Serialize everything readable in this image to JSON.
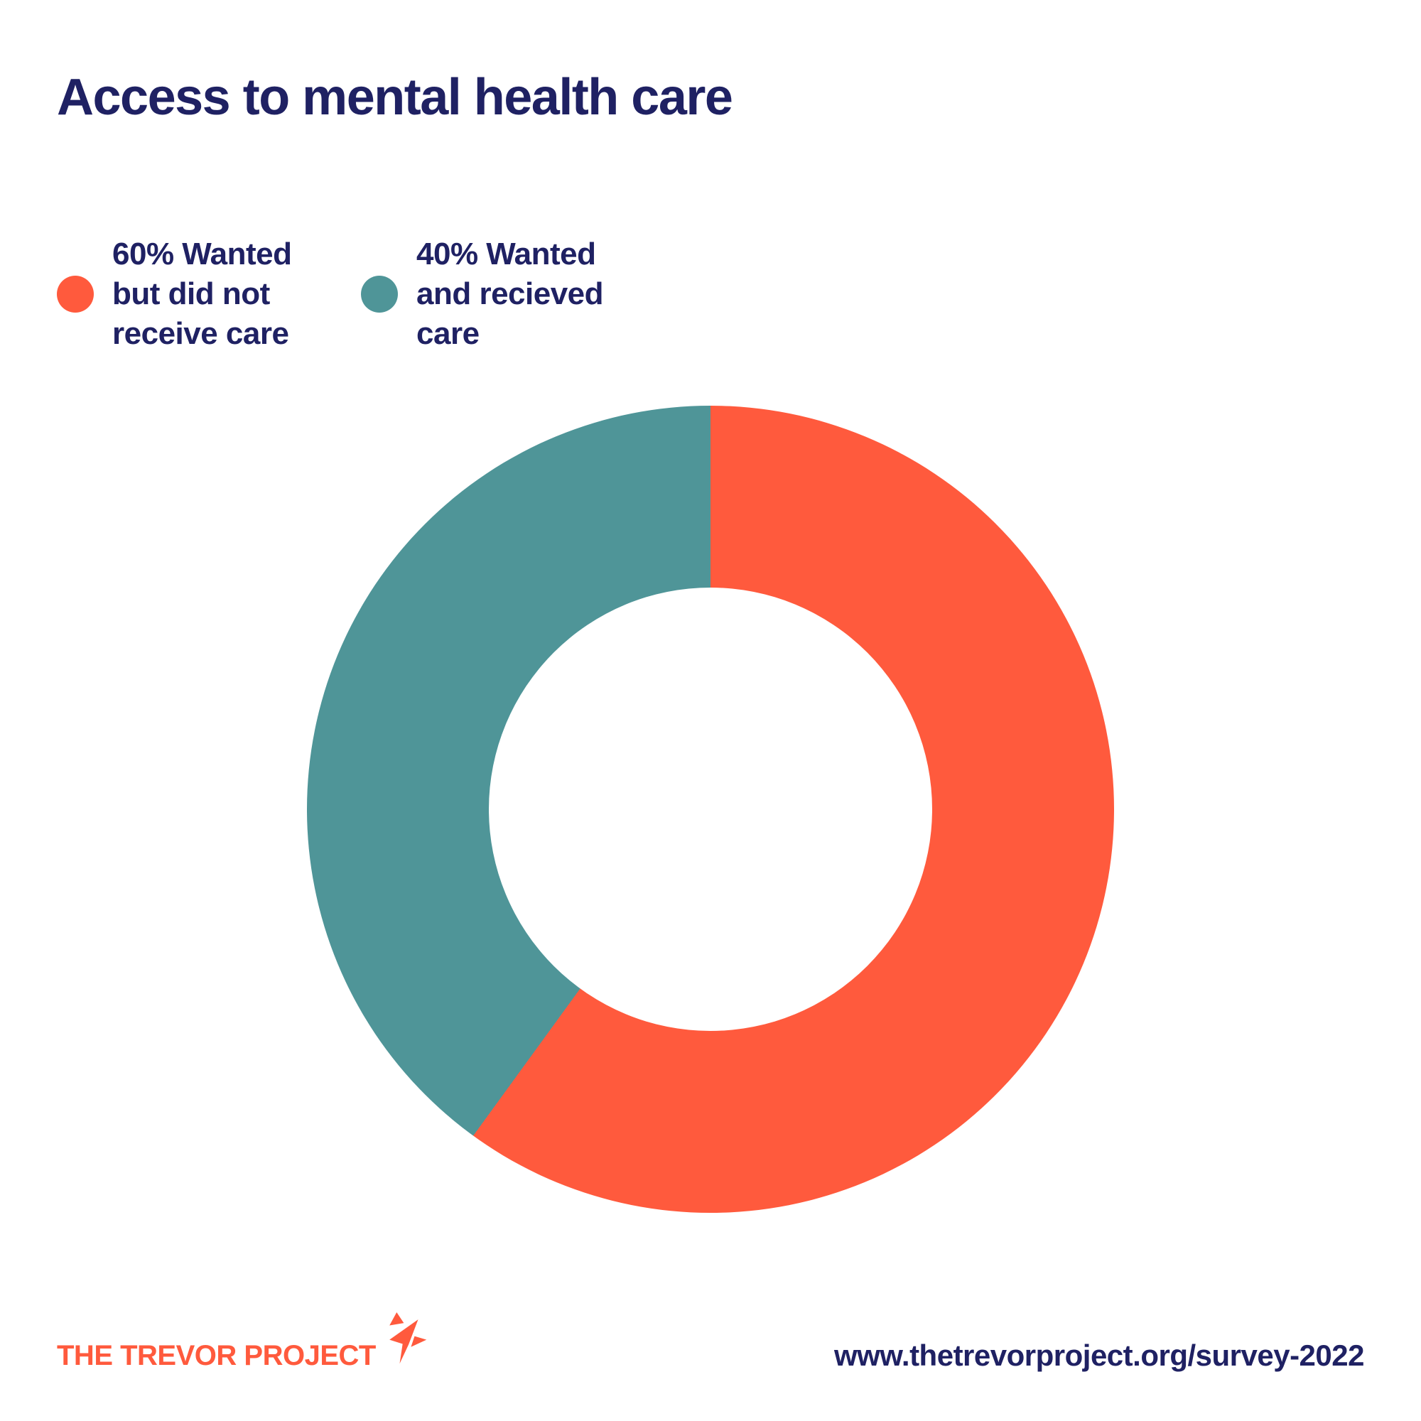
{
  "title": "Access to mental health care",
  "legend": {
    "items": [
      {
        "label": "60% Wanted but did not receive care",
        "lines": [
          "60% Wanted",
          "but did not",
          "receive care"
        ],
        "color": "#FF5A3D"
      },
      {
        "label": "40% Wanted and recieved care",
        "lines": [
          "40% Wanted",
          "and recieved",
          "care"
        ],
        "color": "#4F9598"
      }
    ]
  },
  "chart_data": {
    "type": "pie",
    "subtype": "donut",
    "title": "Access to mental health care",
    "labels": [
      "Wanted but did not receive care",
      "Wanted and recieved care"
    ],
    "values": [
      60,
      40
    ],
    "units": "percent",
    "colors": [
      "#FF5A3D",
      "#4F9598"
    ],
    "start_angle_deg": 0,
    "direction": "clockwise",
    "inner_radius_ratio": 0.55,
    "legend_position": "top-left"
  },
  "footer": {
    "logo_text": "THE TREVOR PROJECT",
    "url": "www.thetrevorproject.org/survey-2022"
  },
  "colors": {
    "orange": "#FF5A3D",
    "teal": "#4F9598",
    "navy": "#1F2163",
    "background": "#FFFFFF"
  }
}
